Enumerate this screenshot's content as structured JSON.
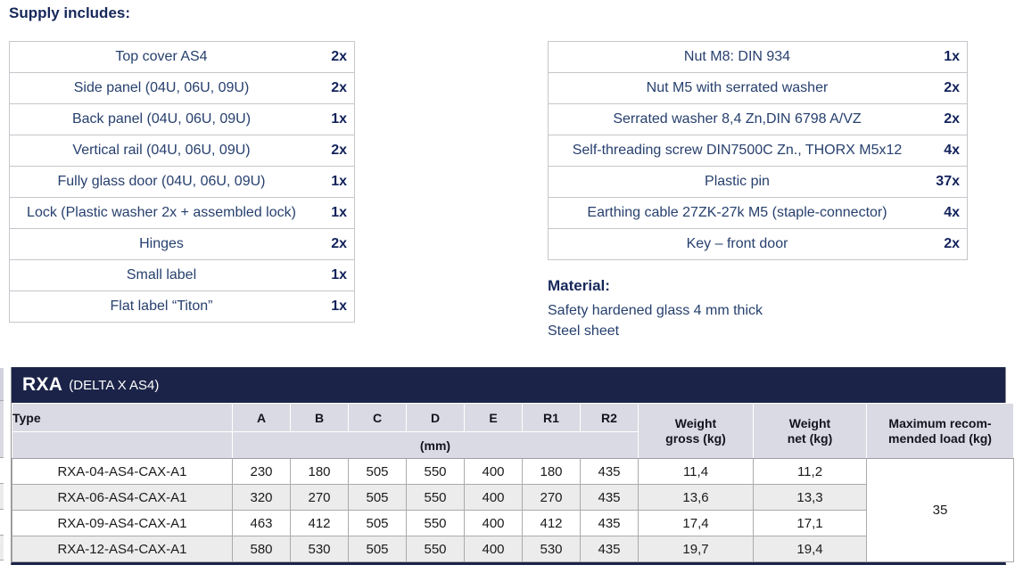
{
  "heading": "Supply includes:",
  "supply_left": [
    {
      "item": "Top cover AS4",
      "qty": "2x"
    },
    {
      "item": "Side panel (04U, 06U, 09U)",
      "qty": "2x"
    },
    {
      "item": "Back panel (04U, 06U, 09U)",
      "qty": "1x"
    },
    {
      "item": "Vertical rail (04U, 06U, 09U)",
      "qty": "2x"
    },
    {
      "item": "Fully glass door (04U, 06U, 09U)",
      "qty": "1x"
    },
    {
      "item": "Lock (Plastic washer 2x + assembled lock)",
      "qty": "1x"
    },
    {
      "item": "Hinges",
      "qty": "2x"
    },
    {
      "item": "Small label",
      "qty": "1x"
    },
    {
      "item": "Flat label “Titon”",
      "qty": "1x"
    }
  ],
  "supply_right": [
    {
      "item": "Nut M8: DIN 934",
      "qty": "1x"
    },
    {
      "item": "Nut M5 with serrated washer",
      "qty": "2x"
    },
    {
      "item": "Serrated washer 8,4 Zn,DIN 6798 A/VZ",
      "qty": "2x"
    },
    {
      "item": "Self-threading screw DIN7500C Zn., THORX M5x12",
      "qty": "4x"
    },
    {
      "item": "Plastic pin",
      "qty": "37x"
    },
    {
      "item": "Earthing cable 27ZK-27k M5 (staple-connector)",
      "qty": "4x"
    },
    {
      "item": "Key – front door",
      "qty": "2x"
    }
  ],
  "material": {
    "heading": "Material:",
    "lines": [
      "Safety hardened glass 4 mm thick",
      "Steel sheet"
    ]
  },
  "spec_table": {
    "title": "RXA",
    "subtitle": "(DELTA X AS4)",
    "type_header": "Type",
    "dim_columns": [
      "A",
      "B",
      "C",
      "D",
      "E",
      "R1",
      "R2"
    ],
    "unit_label": "(mm)",
    "weight_gross_header": {
      "line1": "Weight",
      "line2": "gross (kg)"
    },
    "weight_net_header": {
      "line1": "Weight",
      "line2": "net (kg)"
    },
    "max_load_header": {
      "line1": "Maximum recom-",
      "line2": "mended load (kg)"
    },
    "rows": [
      {
        "type": "RXA-04-AS4-CAX-A1",
        "dims": [
          "230",
          "180",
          "505",
          "550",
          "400",
          "180",
          "435"
        ],
        "gross": "11,4",
        "net": "11,2"
      },
      {
        "type": "RXA-06-AS4-CAX-A1",
        "dims": [
          "320",
          "270",
          "505",
          "550",
          "400",
          "270",
          "435"
        ],
        "gross": "13,6",
        "net": "13,3"
      },
      {
        "type": "RXA-09-AS4-CAX-A1",
        "dims": [
          "463",
          "412",
          "505",
          "550",
          "400",
          "412",
          "435"
        ],
        "gross": "17,4",
        "net": "17,1"
      },
      {
        "type": "RXA-12-AS4-CAX-A1",
        "dims": [
          "580",
          "530",
          "505",
          "550",
          "400",
          "530",
          "435"
        ],
        "gross": "19,7",
        "net": "19,4"
      }
    ],
    "max_load": "35"
  },
  "colors": {
    "navy_bar": "#1b2448",
    "header_bg": "#dadae4",
    "alt_row_bg": "#ececec",
    "item_navy": "#27406e",
    "qty_navy": "#13235b",
    "heading_navy": "#16285a",
    "grid_gray": "#ababab",
    "outer_gray": "#c6c6cb"
  }
}
